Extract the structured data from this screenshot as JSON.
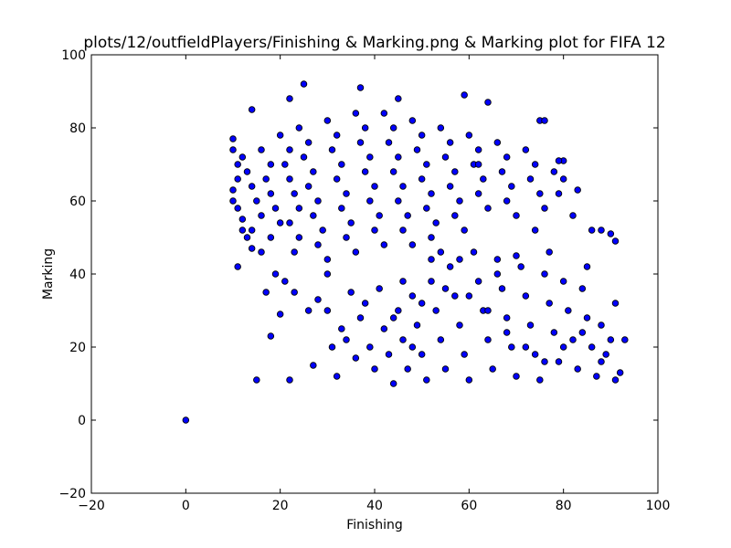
{
  "chart_data": {
    "type": "scatter",
    "title": "plots/12/outfieldPlayers/Finishing & Marking.png & Marking plot for FIFA 12",
    "xlabel": "Finishing",
    "ylabel": "Marking",
    "xlim": [
      -20,
      100
    ],
    "ylim": [
      -20,
      100
    ],
    "xticks": [
      "−20",
      "0",
      "20",
      "40",
      "60",
      "80",
      "100"
    ],
    "yticks": [
      "−20",
      "0",
      "20",
      "40",
      "60",
      "80",
      "100"
    ],
    "grid": false,
    "marker_color": "#0000ff",
    "marker_edge": "#000000",
    "points": [
      [
        0,
        0
      ],
      [
        15,
        11
      ],
      [
        22,
        11
      ],
      [
        18,
        23
      ],
      [
        20,
        29
      ],
      [
        11,
        42
      ],
      [
        27,
        15
      ],
      [
        25,
        92
      ],
      [
        37,
        91
      ],
      [
        45,
        88
      ],
      [
        59,
        89
      ],
      [
        64,
        87
      ],
      [
        22,
        88
      ],
      [
        14,
        85
      ],
      [
        10,
        77
      ],
      [
        10,
        74
      ],
      [
        11,
        70
      ],
      [
        11,
        66
      ],
      [
        10,
        63
      ],
      [
        10,
        60
      ],
      [
        11,
        58
      ],
      [
        12,
        55
      ],
      [
        12,
        52
      ],
      [
        13,
        50
      ],
      [
        14,
        47
      ],
      [
        16,
        46
      ],
      [
        19,
        40
      ],
      [
        21,
        38
      ],
      [
        12,
        72
      ],
      [
        13,
        68
      ],
      [
        14,
        64
      ],
      [
        15,
        60
      ],
      [
        16,
        56
      ],
      [
        14,
        52
      ],
      [
        16,
        74
      ],
      [
        18,
        70
      ],
      [
        17,
        66
      ],
      [
        18,
        62
      ],
      [
        19,
        58
      ],
      [
        20,
        54
      ],
      [
        18,
        50
      ],
      [
        20,
        78
      ],
      [
        22,
        74
      ],
      [
        21,
        70
      ],
      [
        22,
        66
      ],
      [
        23,
        62
      ],
      [
        24,
        58
      ],
      [
        22,
        54
      ],
      [
        24,
        50
      ],
      [
        23,
        46
      ],
      [
        24,
        80
      ],
      [
        26,
        76
      ],
      [
        25,
        72
      ],
      [
        27,
        68
      ],
      [
        26,
        64
      ],
      [
        28,
        60
      ],
      [
        27,
        56
      ],
      [
        29,
        52
      ],
      [
        28,
        48
      ],
      [
        30,
        44
      ],
      [
        30,
        82
      ],
      [
        32,
        78
      ],
      [
        31,
        74
      ],
      [
        33,
        70
      ],
      [
        32,
        66
      ],
      [
        34,
        62
      ],
      [
        33,
        58
      ],
      [
        35,
        54
      ],
      [
        34,
        50
      ],
      [
        36,
        46
      ],
      [
        36,
        84
      ],
      [
        38,
        80
      ],
      [
        37,
        76
      ],
      [
        39,
        72
      ],
      [
        38,
        68
      ],
      [
        40,
        64
      ],
      [
        39,
        60
      ],
      [
        41,
        56
      ],
      [
        40,
        52
      ],
      [
        42,
        48
      ],
      [
        42,
        84
      ],
      [
        44,
        80
      ],
      [
        43,
        76
      ],
      [
        45,
        72
      ],
      [
        44,
        68
      ],
      [
        46,
        64
      ],
      [
        45,
        60
      ],
      [
        47,
        56
      ],
      [
        46,
        52
      ],
      [
        48,
        48
      ],
      [
        48,
        82
      ],
      [
        50,
        78
      ],
      [
        49,
        74
      ],
      [
        51,
        70
      ],
      [
        50,
        66
      ],
      [
        52,
        62
      ],
      [
        51,
        58
      ],
      [
        53,
        54
      ],
      [
        52,
        50
      ],
      [
        54,
        46
      ],
      [
        54,
        80
      ],
      [
        56,
        76
      ],
      [
        55,
        72
      ],
      [
        57,
        68
      ],
      [
        56,
        64
      ],
      [
        58,
        60
      ],
      [
        57,
        56
      ],
      [
        59,
        52
      ],
      [
        60,
        78
      ],
      [
        62,
        74
      ],
      [
        61,
        70
      ],
      [
        63,
        66
      ],
      [
        62,
        62
      ],
      [
        64,
        58
      ],
      [
        66,
        76
      ],
      [
        68,
        72
      ],
      [
        67,
        68
      ],
      [
        69,
        64
      ],
      [
        68,
        60
      ],
      [
        70,
        56
      ],
      [
        72,
        74
      ],
      [
        74,
        70
      ],
      [
        73,
        66
      ],
      [
        75,
        62
      ],
      [
        76,
        58
      ],
      [
        78,
        68
      ],
      [
        80,
        66
      ],
      [
        79,
        62
      ],
      [
        82,
        56
      ],
      [
        80,
        71
      ],
      [
        75,
        82
      ],
      [
        17,
        35
      ],
      [
        23,
        35
      ],
      [
        26,
        30
      ],
      [
        28,
        33
      ],
      [
        30,
        30
      ],
      [
        31,
        20
      ],
      [
        32,
        12
      ],
      [
        33,
        25
      ],
      [
        30,
        40
      ],
      [
        35,
        35
      ],
      [
        34,
        22
      ],
      [
        36,
        17
      ],
      [
        37,
        28
      ],
      [
        38,
        32
      ],
      [
        39,
        20
      ],
      [
        40,
        14
      ],
      [
        41,
        36
      ],
      [
        42,
        25
      ],
      [
        43,
        18
      ],
      [
        44,
        10
      ],
      [
        45,
        30
      ],
      [
        46,
        22
      ],
      [
        47,
        14
      ],
      [
        48,
        34
      ],
      [
        49,
        26
      ],
      [
        50,
        18
      ],
      [
        51,
        11
      ],
      [
        52,
        38
      ],
      [
        53,
        30
      ],
      [
        54,
        22
      ],
      [
        55,
        14
      ],
      [
        56,
        42
      ],
      [
        57,
        34
      ],
      [
        58,
        26
      ],
      [
        59,
        18
      ],
      [
        60,
        11
      ],
      [
        61,
        46
      ],
      [
        62,
        38
      ],
      [
        63,
        30
      ],
      [
        64,
        22
      ],
      [
        65,
        14
      ],
      [
        66,
        44
      ],
      [
        67,
        36
      ],
      [
        68,
        28
      ],
      [
        69,
        20
      ],
      [
        70,
        12
      ],
      [
        71,
        42
      ],
      [
        72,
        34
      ],
      [
        73,
        26
      ],
      [
        74,
        18
      ],
      [
        75,
        11
      ],
      [
        76,
        40
      ],
      [
        77,
        32
      ],
      [
        78,
        24
      ],
      [
        79,
        16
      ],
      [
        80,
        38
      ],
      [
        81,
        30
      ],
      [
        82,
        22
      ],
      [
        83,
        14
      ],
      [
        84,
        36
      ],
      [
        85,
        28
      ],
      [
        86,
        20
      ],
      [
        87,
        12
      ],
      [
        88,
        26
      ],
      [
        89,
        18
      ],
      [
        90,
        22
      ],
      [
        91,
        32
      ],
      [
        91,
        11
      ],
      [
        92,
        13
      ],
      [
        93,
        22
      ],
      [
        85,
        42
      ],
      [
        86,
        52
      ],
      [
        88,
        52
      ],
      [
        90,
        51
      ],
      [
        91,
        49
      ],
      [
        83,
        63
      ],
      [
        79,
        71
      ],
      [
        76,
        82
      ],
      [
        62,
        70
      ],
      [
        70,
        45
      ],
      [
        66,
        40
      ],
      [
        74,
        52
      ],
      [
        77,
        46
      ],
      [
        58,
        44
      ],
      [
        52,
        44
      ],
      [
        48,
        20
      ],
      [
        46,
        38
      ],
      [
        44,
        28
      ],
      [
        50,
        32
      ],
      [
        55,
        36
      ],
      [
        60,
        34
      ],
      [
        64,
        30
      ],
      [
        68,
        24
      ],
      [
        72,
        20
      ],
      [
        76,
        16
      ],
      [
        80,
        20
      ],
      [
        84,
        24
      ],
      [
        88,
        16
      ]
    ]
  }
}
